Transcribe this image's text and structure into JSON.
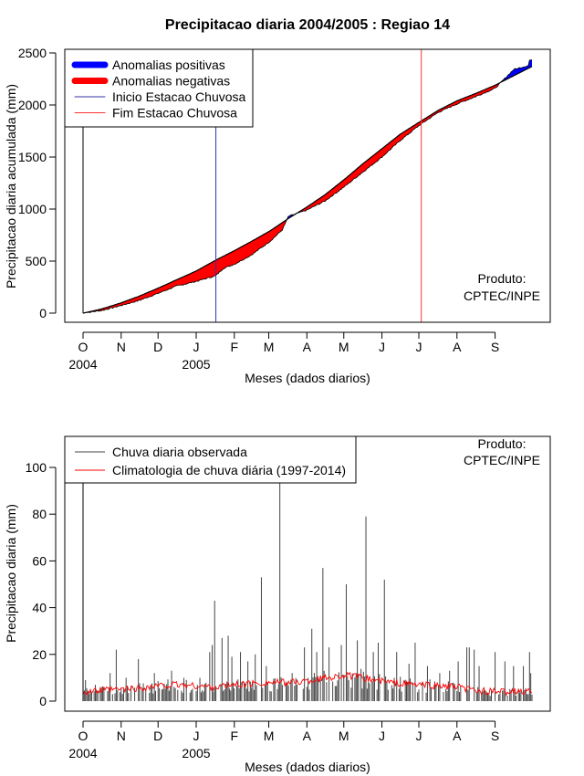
{
  "chart_data": [
    {
      "type": "area",
      "title": "Precipitacao diaria 2004/2005 : Regiao 14",
      "xlabel": "Meses (dados diarios)",
      "ylabel": "Precipitacao diaria acumulada (mm)",
      "x_ticks": [
        "O",
        "N",
        "D",
        "J",
        "F",
        "M",
        "A",
        "M",
        "J",
        "J",
        "A",
        "S"
      ],
      "x_year_labels": [
        {
          "at": "O",
          "label": "2004"
        },
        {
          "at": "J",
          "label": "2005"
        }
      ],
      "y_ticks": [
        0,
        500,
        1000,
        1500,
        2000,
        2500
      ],
      "ylim": [
        0,
        2550
      ],
      "xlim_days": [
        0,
        365
      ],
      "legend": {
        "placement": "top-left",
        "entries": [
          {
            "label": "Anomalias positivas",
            "color": "#0000ff",
            "style": "thick"
          },
          {
            "label": "Anomalias negativas",
            "color": "#ff0000",
            "style": "thick"
          },
          {
            "label": "Inicio Estacao Chuvosa",
            "color": "#3333aa",
            "style": "thin"
          },
          {
            "label": "Fim Estacao Chuvosa",
            "color": "#ff3333",
            "style": "thin"
          }
        ]
      },
      "annotation": [
        "Produto:",
        "CPTEC/INPE"
      ],
      "season_start_day": 108,
      "season_end_day": 275,
      "climatology_cumulative": [
        [
          0,
          0
        ],
        [
          15,
          40
        ],
        [
          30,
          95
        ],
        [
          45,
          160
        ],
        [
          61,
          240
        ],
        [
          76,
          320
        ],
        [
          92,
          405
        ],
        [
          108,
          510
        ],
        [
          123,
          600
        ],
        [
          137,
          690
        ],
        [
          152,
          790
        ],
        [
          167,
          910
        ],
        [
          182,
          1020
        ],
        [
          197,
          1140
        ],
        [
          213,
          1290
        ],
        [
          228,
          1440
        ],
        [
          243,
          1580
        ],
        [
          258,
          1720
        ],
        [
          274,
          1840
        ],
        [
          289,
          1950
        ],
        [
          304,
          2040
        ],
        [
          319,
          2110
        ],
        [
          335,
          2190
        ],
        [
          350,
          2280
        ],
        [
          365,
          2370
        ]
      ],
      "observed_cumulative": [
        [
          0,
          0
        ],
        [
          15,
          25
        ],
        [
          30,
          70
        ],
        [
          45,
          120
        ],
        [
          61,
          190
        ],
        [
          76,
          260
        ],
        [
          92,
          305
        ],
        [
          108,
          360
        ],
        [
          114,
          430
        ],
        [
          123,
          470
        ],
        [
          137,
          560
        ],
        [
          152,
          690
        ],
        [
          162,
          800
        ],
        [
          167,
          930
        ],
        [
          182,
          990
        ],
        [
          197,
          1080
        ],
        [
          213,
          1220
        ],
        [
          228,
          1360
        ],
        [
          243,
          1500
        ],
        [
          258,
          1660
        ],
        [
          274,
          1810
        ],
        [
          289,
          1930
        ],
        [
          304,
          2010
        ],
        [
          319,
          2080
        ],
        [
          335,
          2160
        ],
        [
          350,
          2340
        ],
        [
          362,
          2380
        ],
        [
          363,
          2430
        ],
        [
          365,
          2430
        ]
      ]
    },
    {
      "type": "bar",
      "xlabel": "Meses (dados diarios)",
      "ylabel": "Precipitacao diaria (mm)",
      "x_ticks": [
        "O",
        "N",
        "D",
        "J",
        "F",
        "M",
        "A",
        "M",
        "J",
        "J",
        "A",
        "S"
      ],
      "x_year_labels": [
        {
          "at": "O",
          "label": "2004"
        },
        {
          "at": "J",
          "label": "2005"
        }
      ],
      "y_ticks": [
        0,
        20,
        40,
        60,
        80,
        100
      ],
      "ylim": [
        0,
        112
      ],
      "xlim_days": [
        0,
        365
      ],
      "legend": {
        "placement": "top-left",
        "entries": [
          {
            "label": "Chuva diaria observada",
            "color": "#444444"
          },
          {
            "label": "Climatologia de chuva diária (1997-2014)",
            "color": "#ff0000"
          }
        ]
      },
      "annotation": [
        "Produto:",
        "CPTEC/INPE"
      ],
      "observed_daily_peaks": [
        [
          2,
          9
        ],
        [
          10,
          7
        ],
        [
          22,
          12
        ],
        [
          27,
          22
        ],
        [
          35,
          10
        ],
        [
          45,
          18
        ],
        [
          58,
          12
        ],
        [
          72,
          13
        ],
        [
          82,
          10
        ],
        [
          95,
          10
        ],
        [
          103,
          21
        ],
        [
          105,
          24
        ],
        [
          107,
          43
        ],
        [
          113,
          27
        ],
        [
          118,
          28
        ],
        [
          121,
          19
        ],
        [
          128,
          21
        ],
        [
          134,
          17
        ],
        [
          140,
          20
        ],
        [
          145,
          53
        ],
        [
          149,
          15
        ],
        [
          160,
          118
        ],
        [
          170,
          12
        ],
        [
          180,
          23
        ],
        [
          186,
          31
        ],
        [
          190,
          21
        ],
        [
          195,
          57
        ],
        [
          200,
          23
        ],
        [
          210,
          24
        ],
        [
          214,
          50
        ],
        [
          223,
          26
        ],
        [
          230,
          79
        ],
        [
          236,
          21
        ],
        [
          240,
          25
        ],
        [
          245,
          52
        ],
        [
          255,
          21
        ],
        [
          265,
          16
        ],
        [
          270,
          25
        ],
        [
          280,
          15
        ],
        [
          290,
          12
        ],
        [
          298,
          13
        ],
        [
          305,
          17
        ],
        [
          312,
          23
        ],
        [
          314,
          23
        ],
        [
          318,
          22
        ],
        [
          322,
          15
        ],
        [
          335,
          21
        ],
        [
          343,
          17
        ],
        [
          350,
          15
        ],
        [
          358,
          15
        ],
        [
          363,
          21
        ],
        [
          364,
          12
        ]
      ],
      "climatology_daily": [
        [
          0,
          4
        ],
        [
          15,
          4.5
        ],
        [
          30,
          5
        ],
        [
          45,
          5.5
        ],
        [
          61,
          6.5
        ],
        [
          76,
          7
        ],
        [
          92,
          6.5
        ],
        [
          108,
          6
        ],
        [
          123,
          7
        ],
        [
          137,
          7.5
        ],
        [
          152,
          8
        ],
        [
          167,
          8
        ],
        [
          182,
          8.5
        ],
        [
          197,
          10
        ],
        [
          213,
          11
        ],
        [
          228,
          10
        ],
        [
          243,
          8.5
        ],
        [
          258,
          7.5
        ],
        [
          274,
          7
        ],
        [
          289,
          6.5
        ],
        [
          304,
          6
        ],
        [
          319,
          4.5
        ],
        [
          335,
          4
        ],
        [
          350,
          4
        ],
        [
          365,
          4
        ]
      ]
    }
  ]
}
